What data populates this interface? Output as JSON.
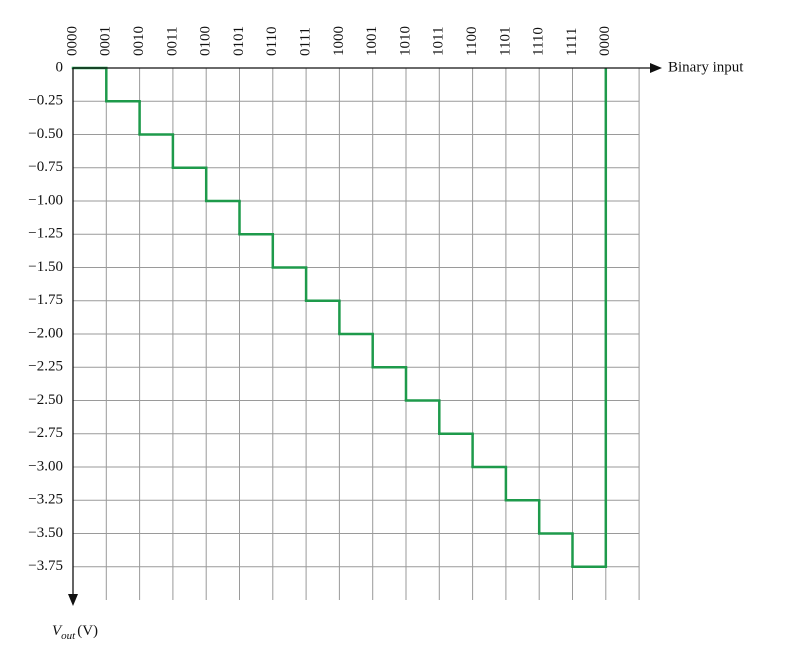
{
  "chart_data": {
    "type": "step",
    "categories": [
      "0000",
      "0001",
      "0010",
      "0011",
      "0100",
      "0101",
      "0110",
      "0111",
      "1000",
      "1001",
      "1010",
      "1011",
      "1100",
      "1101",
      "1110",
      "1111",
      "0000"
    ],
    "series": [
      {
        "name": "Vout",
        "color": "#1e9a4b",
        "values": [
          0,
          -0.25,
          -0.5,
          -0.75,
          -1,
          -1.25,
          -1.5,
          -1.75,
          -2,
          -2.25,
          -2.5,
          -2.75,
          -3,
          -3.25,
          -3.5,
          -3.75,
          0
        ]
      }
    ],
    "xlabel": "Binary input",
    "ylabel": "V",
    "ylabel_sub": "out",
    "ylabel_unit": "(V)",
    "ylim": [
      -4,
      0
    ],
    "yticks": [
      0,
      {
        "value": -0.25,
        "label": "−0.25"
      },
      {
        "value": -0.5,
        "label": "−0.50"
      },
      {
        "value": -0.75,
        "label": "−0.75"
      },
      {
        "value": -1,
        "label": "−1.00"
      },
      {
        "value": -1.25,
        "label": "−1.25"
      },
      {
        "value": -1.5,
        "label": "−1.50"
      },
      {
        "value": -1.75,
        "label": "−1.75"
      },
      {
        "value": -2,
        "label": "−2.00"
      },
      {
        "value": -2.25,
        "label": "−2.25"
      },
      {
        "value": -2.5,
        "label": "−2.50"
      },
      {
        "value": -2.75,
        "label": "−2.75"
      },
      {
        "value": -3,
        "label": "−3.00"
      },
      {
        "value": -3.25,
        "label": "−3.25"
      },
      {
        "value": -3.5,
        "label": "−3.50"
      },
      {
        "value": -3.75,
        "label": "−3.75"
      }
    ],
    "grid": true
  }
}
